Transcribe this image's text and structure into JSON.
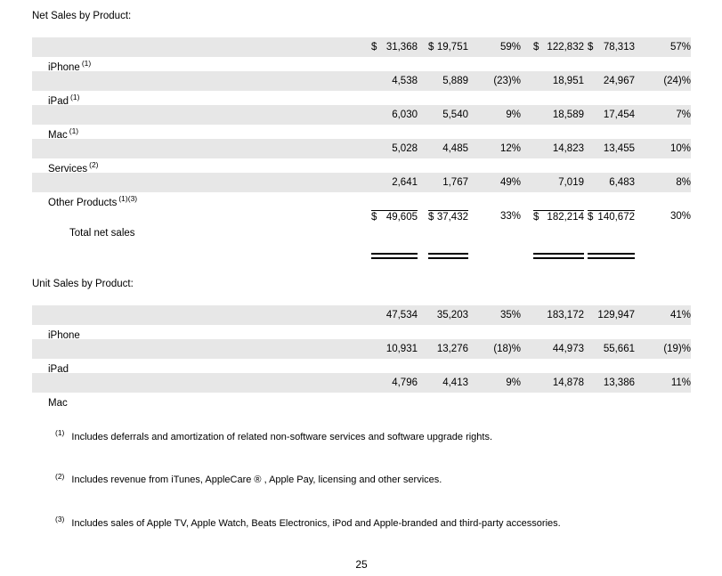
{
  "net_sales": {
    "heading": "Net Sales by Product:",
    "rows": [
      {
        "label": "iPhone",
        "sup": "(1)",
        "d1": "$",
        "v1": "31,368",
        "d2": "$",
        "v2": "19,751",
        "p1": "59%",
        "d3": "$",
        "v3": "122,832",
        "d4": "$",
        "v4": "78,313",
        "p2": "57%"
      },
      {
        "label": "iPad",
        "sup": "(1)",
        "d1": "",
        "v1": "4,538",
        "d2": "",
        "v2": "5,889",
        "p1": "(23)%",
        "d3": "",
        "v3": "18,951",
        "d4": "",
        "v4": "24,967",
        "p2": "(24)%"
      },
      {
        "label": "Mac",
        "sup": "(1)",
        "d1": "",
        "v1": "6,030",
        "d2": "",
        "v2": "5,540",
        "p1": "9%",
        "d3": "",
        "v3": "18,589",
        "d4": "",
        "v4": "17,454",
        "p2": "7%"
      },
      {
        "label": "Services",
        "sup": "(2)",
        "d1": "",
        "v1": "5,028",
        "d2": "",
        "v2": "4,485",
        "p1": "12%",
        "d3": "",
        "v3": "14,823",
        "d4": "",
        "v4": "13,455",
        "p2": "10%"
      },
      {
        "label": "Other Products",
        "sup": "(1)(3)",
        "d1": "",
        "v1": "2,641",
        "d2": "",
        "v2": "1,767",
        "p1": "49%",
        "d3": "",
        "v3": "7,019",
        "d4": "",
        "v4": "6,483",
        "p2": "8%"
      }
    ],
    "total": {
      "label": "Total net sales",
      "d1": "$",
      "v1": "49,605",
      "d2": "$",
      "v2": "37,432",
      "p1": "33%",
      "d3": "$",
      "v3": "182,214",
      "d4": "$",
      "v4": "140,672",
      "p2": "30%"
    }
  },
  "unit_sales": {
    "heading": "Unit Sales by Product:",
    "rows": [
      {
        "label": "iPhone",
        "sup": "",
        "d1": "",
        "v1": "47,534",
        "d2": "",
        "v2": "35,203",
        "p1": "35%",
        "d3": "",
        "v3": "183,172",
        "d4": "",
        "v4": "129,947",
        "p2": "41%"
      },
      {
        "label": "iPad",
        "sup": "",
        "d1": "",
        "v1": "10,931",
        "d2": "",
        "v2": "13,276",
        "p1": "(18)%",
        "d3": "",
        "v3": "44,973",
        "d4": "",
        "v4": "55,661",
        "p2": "(19)%"
      },
      {
        "label": "Mac",
        "sup": "",
        "d1": "",
        "v1": "4,796",
        "d2": "",
        "v2": "4,413",
        "p1": "9%",
        "d3": "",
        "v3": "14,878",
        "d4": "",
        "v4": "13,386",
        "p2": "11%"
      }
    ]
  },
  "footnotes": [
    {
      "sup": "(1)",
      "text": "Includes deferrals and amortization of related non-software services and software upgrade rights."
    },
    {
      "sup": "(2)",
      "text": "Includes revenue from iTunes, AppleCare ® , Apple Pay, licensing and other services."
    },
    {
      "sup": "(3)",
      "text": "Includes sales of Apple TV, Apple Watch, Beats Electronics, iPod and Apple-branded and third-party accessories."
    }
  ],
  "document": {
    "page_number": "25"
  },
  "colors": {
    "stripe": "#e7e7e7",
    "text": "#000000",
    "background": "#ffffff"
  }
}
